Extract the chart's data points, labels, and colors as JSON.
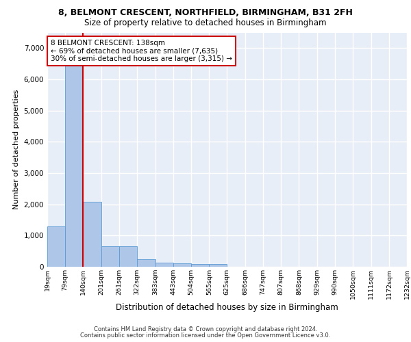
{
  "title_line1": "8, BELMONT CRESCENT, NORTHFIELD, BIRMINGHAM, B31 2FH",
  "title_line2": "Size of property relative to detached houses in Birmingham",
  "xlabel": "Distribution of detached houses by size in Birmingham",
  "ylabel": "Number of detached properties",
  "property_size": 138,
  "annotation_title": "8 BELMONT CRESCENT: 138sqm",
  "annotation_line2": "← 69% of detached houses are smaller (7,635)",
  "annotation_line3": "30% of semi-detached houses are larger (3,315) →",
  "footer_line1": "Contains HM Land Registry data © Crown copyright and database right 2024.",
  "footer_line2": "Contains public sector information licensed under the Open Government Licence v3.0.",
  "bin_edges": [
    19,
    79,
    140,
    201,
    261,
    322,
    383,
    443,
    504,
    565,
    625,
    686,
    747,
    807,
    868,
    929,
    990,
    1050,
    1111,
    1172,
    1232
  ],
  "bar_heights": [
    1300,
    6560,
    2080,
    650,
    650,
    250,
    130,
    120,
    80,
    80,
    0,
    0,
    0,
    0,
    0,
    0,
    0,
    0,
    0,
    0
  ],
  "bar_color": "#aec6e8",
  "bar_edge_color": "#5b9bd5",
  "property_line_color": "#cc0000",
  "annotation_box_color": "#cc0000",
  "background_color": "#e8eef7",
  "grid_color": "#ffffff",
  "ylim": [
    0,
    7500
  ],
  "yticks": [
    0,
    1000,
    2000,
    3000,
    4000,
    5000,
    6000,
    7000
  ]
}
